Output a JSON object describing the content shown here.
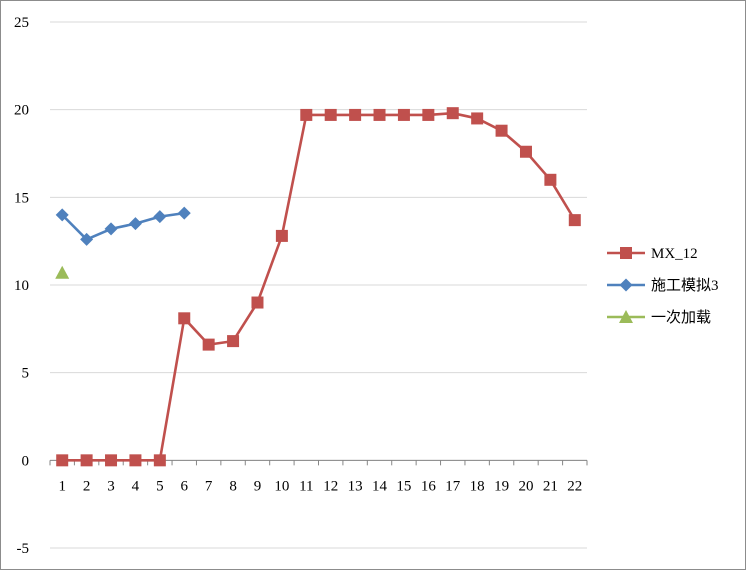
{
  "chart_data": {
    "type": "line",
    "x": [
      1,
      2,
      3,
      4,
      5,
      6,
      7,
      8,
      9,
      10,
      11,
      12,
      13,
      14,
      15,
      16,
      17,
      18,
      19,
      20,
      21,
      22
    ],
    "ylim": [
      -5,
      25
    ],
    "yticks": [
      -5,
      0,
      5,
      10,
      15,
      20,
      25
    ],
    "grid": true,
    "legend_position": "right",
    "series": [
      {
        "name": "MX_12",
        "color": "#c0504d",
        "marker": "square",
        "values": [
          0,
          0,
          0,
          0,
          0,
          8.1,
          6.6,
          6.8,
          9.0,
          12.8,
          19.7,
          19.7,
          19.7,
          19.7,
          19.7,
          19.7,
          19.8,
          19.5,
          18.8,
          17.6,
          16.0,
          13.7
        ]
      },
      {
        "name": "施工模拟3",
        "color": "#4f81bd",
        "marker": "diamond",
        "values": [
          14.0,
          12.6,
          13.2,
          13.5,
          13.9,
          14.1,
          null,
          null,
          null,
          null,
          null,
          null,
          null,
          null,
          null,
          null,
          null,
          null,
          null,
          null,
          null,
          null
        ]
      },
      {
        "name": "一次加载",
        "color": "#9bbb59",
        "marker": "triangle",
        "values": [
          10.7,
          null,
          null,
          null,
          null,
          null,
          null,
          null,
          null,
          null,
          null,
          null,
          null,
          null,
          null,
          null,
          null,
          null,
          null,
          null,
          null,
          null
        ]
      }
    ]
  }
}
